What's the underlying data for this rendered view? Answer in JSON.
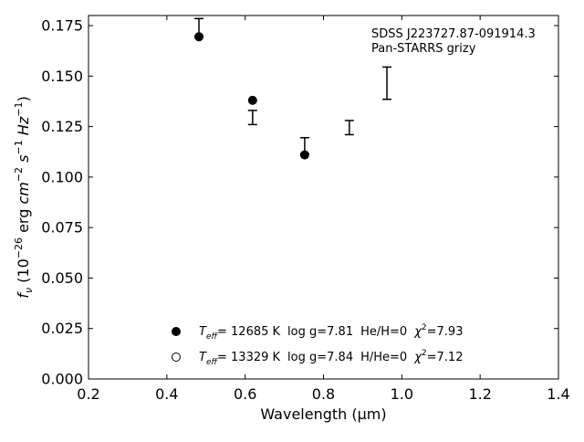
{
  "chart_data": {
    "type": "scatter",
    "xlabel": "Wavelength (μm)",
    "ylabel": {
      "parts": [
        "f",
        "ν",
        " (10",
        "−26",
        " erg ",
        "cm",
        "−2",
        " ",
        "s",
        "−1",
        " ",
        "Hz",
        "−1",
        ")"
      ]
    },
    "xlim": [
      0.2,
      1.4
    ],
    "ylim": [
      0.0,
      0.18
    ],
    "xticks": [
      0.2,
      0.4,
      0.6,
      0.8,
      1.0,
      1.2,
      1.4
    ],
    "xtick_labels": [
      "0.2",
      "0.4",
      "0.6",
      "0.8",
      "1.0",
      "1.2",
      "1.4"
    ],
    "yticks": [
      0.0,
      0.025,
      0.05,
      0.075,
      0.1,
      0.125,
      0.15,
      0.175
    ],
    "ytick_labels": [
      "0.000",
      "0.025",
      "0.050",
      "0.075",
      "0.100",
      "0.125",
      "0.150",
      "0.175"
    ],
    "grid": false,
    "legend_position": "bottom-center",
    "annotation": [
      "SDSS J223727.87-091914.3",
      "Pan-STARRS grizy"
    ],
    "observed": {
      "x": [
        0.482,
        0.619,
        0.752,
        0.866,
        0.962
      ],
      "y": [
        0.174,
        0.1295,
        0.1155,
        0.1245,
        0.1465
      ],
      "yerr": [
        0.0045,
        0.0035,
        0.004,
        0.0035,
        0.008
      ]
    },
    "series": [
      {
        "marker": "filled-circle",
        "legend": {
          "teff_sym": "T",
          "teff_sub": "eff",
          "teff": "= 12685 K",
          "logg": "log g=7.81",
          "comp": "He/H=0",
          "chi_sym": "χ",
          "chi_sup": "2",
          "chi": "=7.93"
        },
        "x": [
          0.482,
          0.619,
          0.752
        ],
        "y": [
          0.1695,
          0.138,
          0.111
        ]
      },
      {
        "marker": "open-circle",
        "legend": {
          "teff_sym": "T",
          "teff_sub": "eff",
          "teff": "= 13329 K",
          "logg": "log g=7.84",
          "comp": "H/He=0",
          "chi_sym": "χ",
          "chi_sup": "2",
          "chi": "=7.12"
        },
        "x": [],
        "y": []
      }
    ]
  }
}
